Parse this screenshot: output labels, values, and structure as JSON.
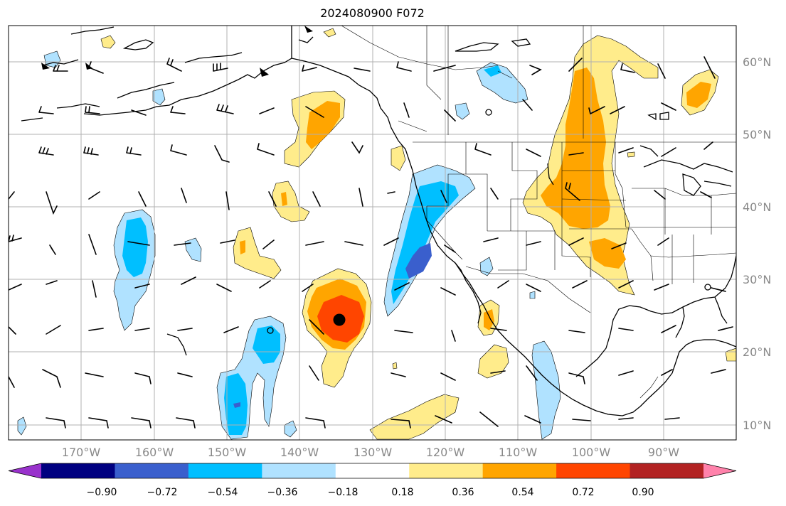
{
  "title": "2024080900 F072",
  "map": {
    "lon_range": [
      -180,
      -80
    ],
    "lat_range": [
      8,
      65
    ],
    "gridlines": true,
    "lon_labels": [
      "170°W",
      "160°W",
      "150°W",
      "140°W",
      "130°W",
      "120°W",
      "110°W",
      "100°W",
      "90°W"
    ],
    "lat_labels": [
      "60°N",
      "50°N",
      "40°N",
      "30°N",
      "20°N",
      "10°N"
    ],
    "tropical_cyclone_marker": {
      "lon": -134.5,
      "lat": 24.5
    }
  },
  "colorbar": {
    "orientation": "horizontal",
    "extend": "both",
    "colors": [
      "#9932cc",
      "#000080",
      "#3a5fcd",
      "#00bfff",
      "#b0e2ff",
      "#ffffff",
      "#ffec8b",
      "#ffa500",
      "#ff4500",
      "#b22222",
      "#ff82ab"
    ],
    "tick_labels": [
      "−0.90",
      "−0.72",
      "−0.54",
      "−0.36",
      "−0.18",
      "0.18",
      "0.36",
      "0.54",
      "0.72",
      "0.90"
    ]
  }
}
